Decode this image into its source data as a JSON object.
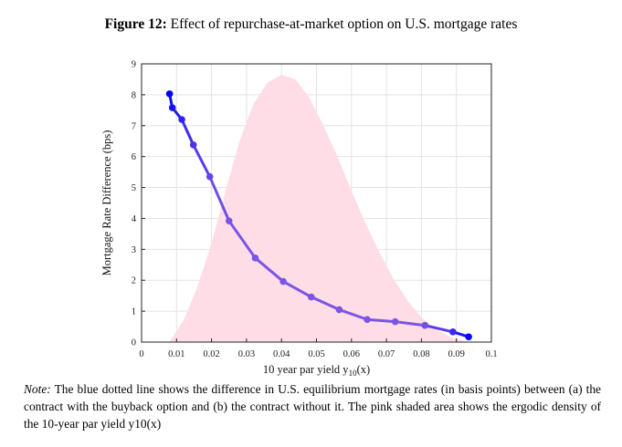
{
  "figure": {
    "label": "Figure 12:",
    "title": "Effect of repurchase-at-market option on U.S. mortgage rates"
  },
  "note": {
    "label": "Note:",
    "text": "The blue dotted line shows the difference in U.S. equilibrium mortgage rates (in basis points) between (a) the contract with the buyback option and (b) the contract without it. The pink shaded area shows the ergodic density of the 10-year par yield y10(x)"
  },
  "chart_data": {
    "type": "line",
    "xlabel": "10 year par yield y10(x)",
    "ylabel": "Mortgage Rate Difference (bps)",
    "xlim": [
      0,
      0.1
    ],
    "ylim": [
      0,
      9
    ],
    "x_ticks": [
      "0",
      "0.01",
      "0.02",
      "0.03",
      "0.04",
      "0.05",
      "0.06",
      "0.07",
      "0.08",
      "0.09",
      "0.1"
    ],
    "y_ticks": [
      "0",
      "1",
      "2",
      "3",
      "4",
      "5",
      "6",
      "7",
      "8",
      "9"
    ],
    "grid": true,
    "series": [
      {
        "x": [
          0.008,
          0.0088,
          0.0115,
          0.0148,
          0.0195,
          0.025,
          0.0325,
          0.0405,
          0.0485,
          0.0565,
          0.0645,
          0.0725,
          0.081,
          0.089,
          0.0935
        ],
        "y": [
          8.03,
          7.58,
          7.2,
          6.38,
          5.35,
          3.92,
          2.72,
          1.96,
          1.46,
          1.05,
          0.73,
          0.66,
          0.54,
          0.33,
          0.17
        ],
        "color_start": "#0000ff",
        "color_end": "#7b55e6"
      }
    ],
    "density": {
      "x": [
        0.008,
        0.012,
        0.016,
        0.02,
        0.024,
        0.028,
        0.032,
        0.036,
        0.04,
        0.044,
        0.048,
        0.052,
        0.056,
        0.06,
        0.064,
        0.068,
        0.072,
        0.076,
        0.08,
        0.084,
        0.088,
        0.092,
        0.094
      ],
      "y": [
        0.0,
        0.7,
        1.8,
        3.2,
        4.9,
        6.5,
        7.7,
        8.4,
        8.65,
        8.5,
        7.9,
        7.0,
        6.0,
        4.9,
        3.85,
        2.9,
        2.05,
        1.35,
        0.8,
        0.42,
        0.18,
        0.05,
        0.0
      ],
      "color": "#ffdde6"
    }
  }
}
